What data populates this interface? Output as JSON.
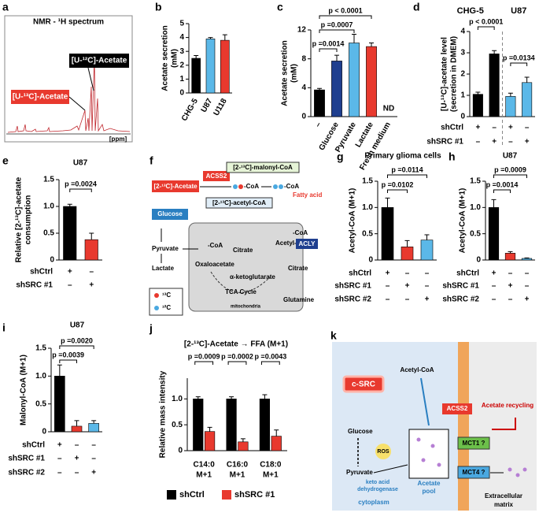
{
  "nmr": {
    "label": "a",
    "title": "NMR - ¹H spectrum",
    "peak_labels": [
      "[U-¹²C]-Acetate",
      "[U-¹³C]-Acetate"
    ],
    "xlabel": "[ppm]"
  },
  "chart_data": [
    {
      "type": "bar",
      "label": "b",
      "categories": [
        "CHG-5",
        "U87",
        "U118"
      ],
      "values": [
        2.5,
        3.9,
        3.8
      ],
      "errors": [
        0.2,
        0.1,
        0.4
      ],
      "colors": [
        "#000000",
        "#5bb8e8",
        "#e8392e"
      ],
      "ylabel": [
        "Acetate secretion",
        "(mM)"
      ],
      "ylim": [
        0,
        5
      ],
      "yticks": [
        0,
        1,
        2,
        3,
        4,
        5
      ]
    },
    {
      "type": "bar",
      "label": "c",
      "categories": [
        "–",
        "Glucose",
        "Pyruvate",
        "Lactate",
        "Fresh medium"
      ],
      "values": [
        3.7,
        7.7,
        10.2,
        9.7,
        null
      ],
      "errors": [
        0.2,
        0.8,
        1.2,
        0.5,
        null
      ],
      "colors": [
        "#000000",
        "#1f3f8f",
        "#5bb8e8",
        "#e8392e",
        "#e8392e"
      ],
      "ylabel": [
        "Acetate secretion",
        "(mM)"
      ],
      "ylim": [
        0,
        12
      ],
      "yticks": [
        0,
        4,
        8,
        12
      ],
      "annotations": [
        "p =0.0014",
        "p =0.0007",
        "p < 0.0001",
        "ND"
      ]
    },
    {
      "type": "bar",
      "label": "d",
      "groups": [
        "CHG-5",
        "U87"
      ],
      "values": [
        1.05,
        2.95,
        0.95,
        1.6
      ],
      "errors": [
        0.1,
        0.15,
        0.15,
        0.25
      ],
      "colors": [
        "#000000",
        "#000000",
        "#5bb8e8",
        "#5bb8e8"
      ],
      "ylabel": [
        "[U-¹³C]-acetate level",
        "(secretion in DMEM)"
      ],
      "ylim": [
        0,
        4
      ],
      "yticks": [
        0,
        1,
        2,
        3,
        4
      ],
      "annotations": [
        "p < 0.0001",
        "p =0.0134"
      ],
      "conditions": [
        {
          "name": "shCtrl",
          "marks": [
            "+",
            "–",
            "+",
            "–"
          ]
        },
        {
          "name": "shSRC #1",
          "marks": [
            "–",
            "+",
            "–",
            "+"
          ]
        }
      ]
    },
    {
      "type": "bar",
      "label": "e",
      "title": "U87",
      "values": [
        1.0,
        0.38
      ],
      "errors": [
        0.04,
        0.12
      ],
      "colors": [
        "#000000",
        "#e8392e"
      ],
      "ylabel": [
        "Relative [2-¹³C]-acetate",
        "consumption"
      ],
      "ylim": [
        0,
        1.5
      ],
      "yticks": [
        0,
        0.5,
        {
          "value": 1,
          "label": "1.0"
        },
        1.5
      ],
      "annotations": [
        "p =0.0024"
      ],
      "conditions": [
        {
          "name": "shCtrl",
          "marks": [
            "+",
            "–"
          ]
        },
        {
          "name": "shSRC #1",
          "marks": [
            "–",
            "+"
          ]
        }
      ]
    },
    {
      "type": "bar",
      "label": "g",
      "title": "Primary glioma cells",
      "values": [
        1.0,
        0.25,
        0.38
      ],
      "errors": [
        0.18,
        0.12,
        0.1
      ],
      "colors": [
        "#000000",
        "#e8392e",
        "#5bb8e8"
      ],
      "ylabel": [
        "Acetyl-CoA (M+1)"
      ],
      "ylim": [
        0,
        1.5
      ],
      "yticks": [
        0,
        0.5,
        {
          "value": 1,
          "label": "1.0"
        },
        1.5
      ],
      "annotations": [
        "p =0.0102",
        "p =0.0114"
      ],
      "conditions": [
        {
          "name": "shCtrl",
          "marks": [
            "+",
            "–",
            "–"
          ]
        },
        {
          "name": "shSRC #1",
          "marks": [
            "–",
            "+",
            "–"
          ]
        },
        {
          "name": "shSRC #2",
          "marks": [
            "–",
            "–",
            "+"
          ]
        }
      ]
    },
    {
      "type": "bar",
      "label": "h",
      "title": "U87",
      "values": [
        1.0,
        0.13,
        0.03
      ],
      "errors": [
        0.15,
        0.03,
        0.01
      ],
      "colors": [
        "#000000",
        "#e8392e",
        "#5bb8e8"
      ],
      "ylabel": [
        "Acetyl-CoA (M+1)"
      ],
      "ylim": [
        0,
        1.5
      ],
      "yticks": [
        0,
        0.5,
        {
          "value": 1,
          "label": "1.0"
        },
        1.5
      ],
      "annotations": [
        "p =0.0014",
        "p =0.0009"
      ],
      "conditions": [
        {
          "name": "shCtrl",
          "marks": [
            "+",
            "–",
            "–"
          ]
        },
        {
          "name": "shSRC #1",
          "marks": [
            "–",
            "+",
            "–"
          ]
        },
        {
          "name": "shSRC #2",
          "marks": [
            "–",
            "–",
            "+"
          ]
        }
      ]
    },
    {
      "type": "bar",
      "label": "i",
      "title": "U87",
      "values": [
        1.0,
        0.1,
        0.15
      ],
      "errors": [
        0.2,
        0.1,
        0.05
      ],
      "colors": [
        "#000000",
        "#e8392e",
        "#5bb8e8"
      ],
      "ylabel": [
        "Malonyl-CoA (M+1)"
      ],
      "ylim": [
        0,
        1.5
      ],
      "yticks": [
        0,
        0.5,
        {
          "value": 1,
          "label": "1.0"
        },
        1.5
      ],
      "annotations": [
        "p =0.0039",
        "p =0.0020"
      ],
      "conditions": [
        {
          "name": "shCtrl",
          "marks": [
            "+",
            "–",
            "–"
          ]
        },
        {
          "name": "shSRC #1",
          "marks": [
            "–",
            "+",
            "–"
          ]
        },
        {
          "name": "shSRC #2",
          "marks": [
            "–",
            "–",
            "+"
          ]
        }
      ]
    },
    {
      "type": "bar",
      "label": "j",
      "title": "[2-¹³C]-Acetate → FFA (M+1)",
      "categories": [
        [
          "C14:0",
          "M+1"
        ],
        [
          "C16:0",
          "M+1"
        ],
        [
          "C18:0",
          "M+1"
        ]
      ],
      "series": [
        {
          "name": "shCtrl",
          "color": "#000000",
          "values": [
            1.0,
            1.0,
            1.0
          ],
          "errors": [
            0.04,
            0.04,
            0.08
          ]
        },
        {
          "name": "shSRC #1",
          "color": "#e8392e",
          "values": [
            0.37,
            0.17,
            0.28
          ],
          "errors": [
            0.08,
            0.06,
            0.12
          ]
        }
      ],
      "ylabel": [
        "Relative mass intensity"
      ],
      "ylim": [
        0,
        1.4
      ],
      "yticks": [
        0,
        0.5,
        {
          "value": 1,
          "label": "1.0"
        }
      ],
      "annotations": [
        "p =0.0009",
        "p =0.0002",
        "p =0.0043"
      ],
      "legend": "bottom"
    }
  ],
  "diagrams": {
    "f": {
      "label": "f",
      "texts": [
        "[2-¹³C]-Acetate",
        "ACSS2",
        "-CoA",
        "-CoA",
        "Fatty acid",
        "[2-¹³C]-malonyl-CoA",
        "[2-¹³C]-acetyl-CoA",
        "Glucose",
        "Pyruvate",
        "Lactate",
        "-CoA",
        "Citrate",
        "Oxaloacetate",
        "α-ketoglutarate",
        "TCA Cycle",
        "mitochondria",
        "-CoA",
        "Acetyl-CoA",
        "ACLY",
        "Citrate",
        "Glutamine",
        "¹³C",
        "¹²C"
      ]
    },
    "k": {
      "label": "k",
      "texts": [
        "c-SRC",
        "Acetyl-CoA",
        "ACSS2",
        "Acetate recycling",
        "Glucose",
        "ROS",
        "Pyruvate",
        "keto acid",
        "dehydrogenase",
        "Acetate",
        "pool",
        "MCT1 ?",
        "MCT4 ?",
        "cytoplasm",
        "Extracellular",
        "matrix"
      ]
    }
  }
}
